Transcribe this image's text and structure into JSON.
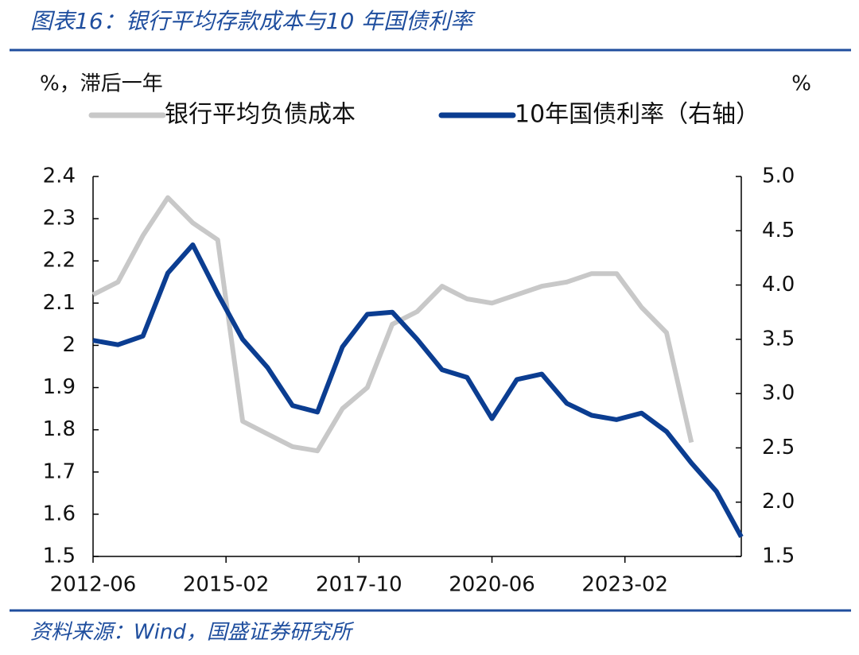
{
  "chart_data": {
    "type": "line",
    "title": "图表16：银行平均存款成本与10 年国债利率",
    "source": "资料来源：Wind，国盛证券研究所",
    "y_label": "%，滞后一年",
    "y2_label": "%",
    "x": [
      "2012-06",
      "2012-12",
      "2013-06",
      "2013-12",
      "2014-06",
      "2014-12",
      "2015-06",
      "2015-12",
      "2016-06",
      "2016-12",
      "2017-06",
      "2017-12",
      "2018-06",
      "2018-12",
      "2019-06",
      "2019-12",
      "2020-06",
      "2020-12",
      "2021-06",
      "2021-12",
      "2022-06",
      "2022-12",
      "2023-06",
      "2023-12",
      "2024-06",
      "2024-12",
      "2025-06"
    ],
    "xlim": [
      "2012-06",
      "2025-06"
    ],
    "xticks": [
      "2012-06",
      "2015-02",
      "2017-10",
      "2020-06",
      "2023-02"
    ],
    "ylim": [
      1.5,
      2.4
    ],
    "yticks": [
      1.5,
      1.6,
      1.7,
      1.8,
      1.9,
      2,
      2.1,
      2.2,
      2.3,
      2.4
    ],
    "y2lim": [
      1.5,
      5.0
    ],
    "y2ticks": [
      1.5,
      {
        "value": 2.0,
        "label": "2.0"
      },
      2.5,
      {
        "value": 3.0,
        "label": "3.0"
      },
      3.5,
      {
        "value": 4.0,
        "label": "4.0"
      },
      4.5,
      {
        "value": 5.0,
        "label": "5.0"
      }
    ],
    "series": [
      {
        "name": "银行平均负债成本",
        "color": "#c8c8c8",
        "values": [
          2.12,
          2.15,
          2.26,
          2.35,
          2.29,
          2.25,
          1.82,
          1.79,
          1.76,
          1.75,
          1.85,
          1.9,
          2.05,
          2.08,
          2.14,
          2.11,
          2.1,
          2.12,
          2.14,
          2.15,
          2.17,
          2.17,
          2.09,
          2.03,
          1.77,
          null,
          null
        ]
      },
      {
        "name": "10年国债利率（右轴）",
        "color": "#0b3d91",
        "axis": "y2",
        "values": [
          3.49,
          3.45,
          3.53,
          4.11,
          4.37,
          3.92,
          3.5,
          3.24,
          2.89,
          2.83,
          3.43,
          3.73,
          3.75,
          3.5,
          3.22,
          3.15,
          2.77,
          3.13,
          3.18,
          2.91,
          2.8,
          2.76,
          2.82,
          2.65,
          2.36,
          2.1,
          1.68
        ]
      }
    ]
  }
}
